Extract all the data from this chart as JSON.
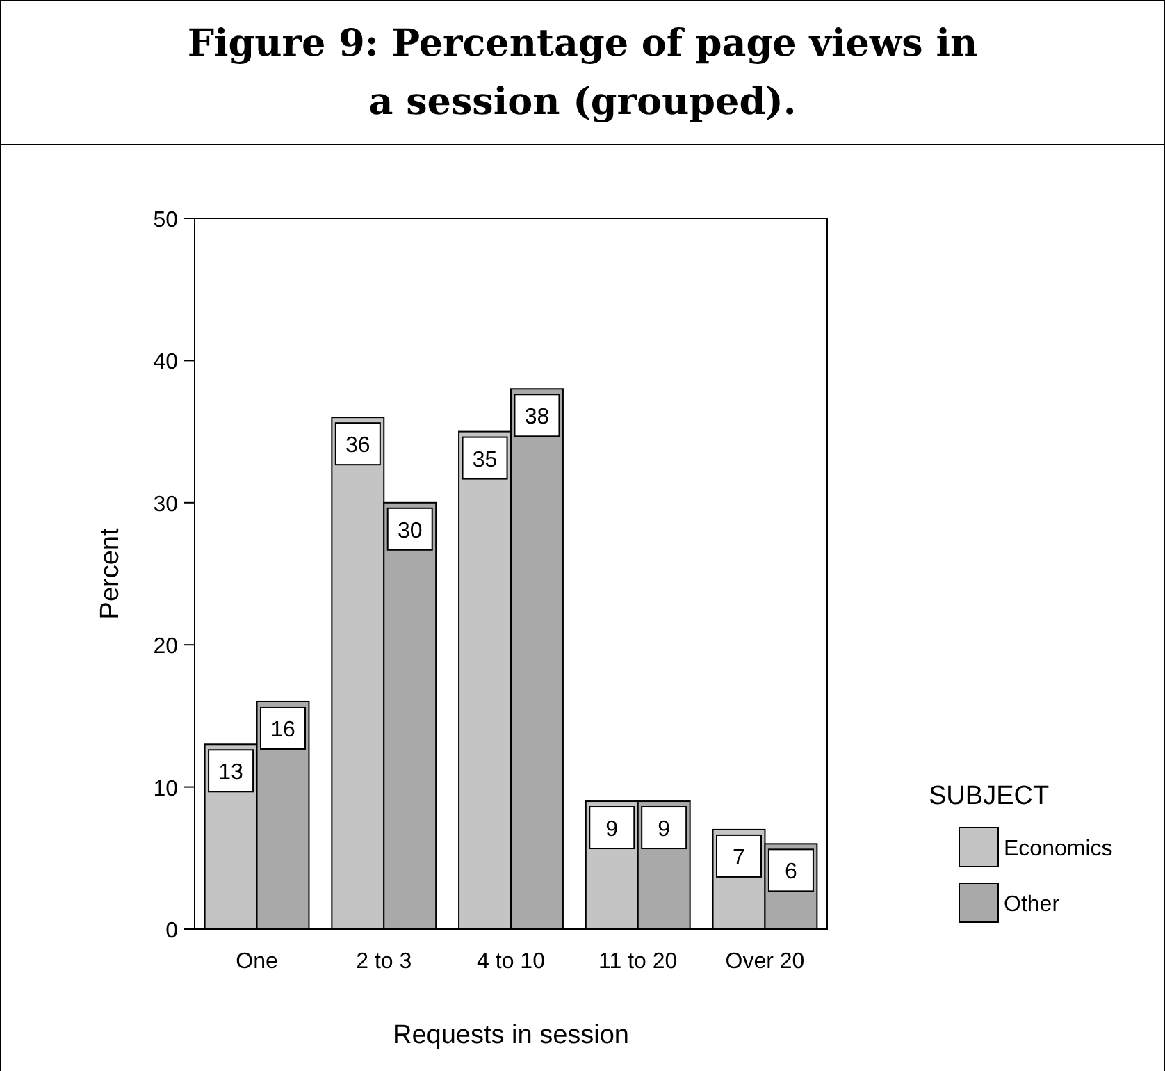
{
  "chart_data": {
    "type": "bar",
    "title": "Figure 9: Percentage of page views in a session (grouped).",
    "xlabel": "Requests in session",
    "ylabel": "Percent",
    "legend_title": "SUBJECT",
    "categories": [
      "One",
      "2 to 3",
      "4 to 10",
      "11 to 20",
      "Over 20"
    ],
    "series": [
      {
        "name": "Economics",
        "color": "#c4c4c4",
        "values": [
          13,
          36,
          35,
          9,
          7
        ]
      },
      {
        "name": "Other",
        "color": "#a9a9a9",
        "values": [
          16,
          30,
          38,
          9,
          6
        ]
      }
    ],
    "ylim": [
      0,
      50
    ],
    "yticks": [
      0,
      10,
      20,
      30,
      40,
      50
    ],
    "grid": false,
    "legend": "right",
    "data_labels": true
  }
}
